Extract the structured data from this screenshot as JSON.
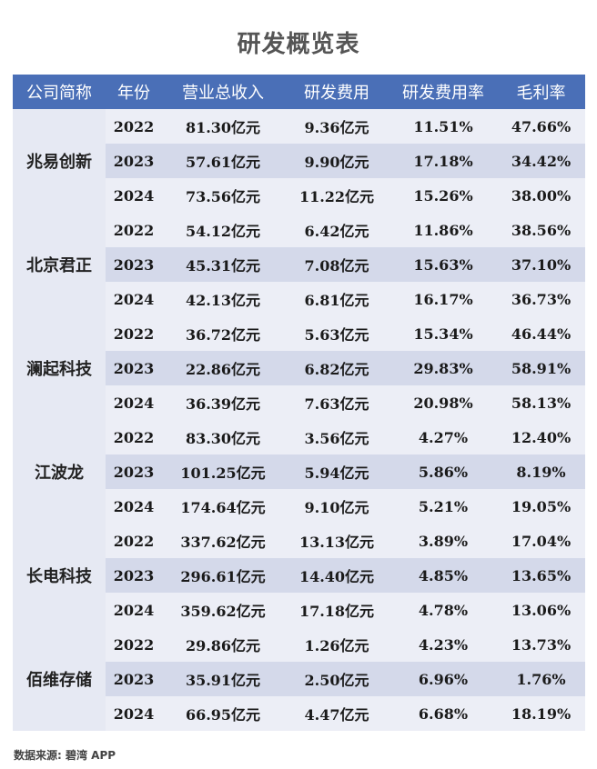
{
  "title": "研发概览表",
  "headers": [
    "公司简称",
    "年份",
    "营业总收入",
    "研发费用",
    "研发费用率",
    "毛利率"
  ],
  "companies": [
    {
      "name": "兆易创新",
      "rows": [
        [
          "2022",
          "81.30亿元",
          "9.36亿元",
          "11.51%",
          "47.66%"
        ],
        [
          "2023",
          "57.61亿元",
          "9.90亿元",
          "17.18%",
          "34.42%"
        ],
        [
          "2024",
          "73.56亿元",
          "11.22亿元",
          "15.26%",
          "38.00%"
        ]
      ]
    },
    {
      "name": "北京君正",
      "rows": [
        [
          "2022",
          "54.12亿元",
          "6.42亿元",
          "11.86%",
          "38.56%"
        ],
        [
          "2023",
          "45.31亿元",
          "7.08亿元",
          "15.63%",
          "37.10%"
        ],
        [
          "2024",
          "42.13亿元",
          "6.81亿元",
          "16.17%",
          "36.73%"
        ]
      ]
    },
    {
      "name": "澜起科技",
      "rows": [
        [
          "2022",
          "36.72亿元",
          "5.63亿元",
          "15.34%",
          "46.44%"
        ],
        [
          "2023",
          "22.86亿元",
          "6.82亿元",
          "29.83%",
          "58.91%"
        ],
        [
          "2024",
          "36.39亿元",
          "7.63亿元",
          "20.98%",
          "58.13%"
        ]
      ]
    },
    {
      "name": "江波龙",
      "rows": [
        [
          "2022",
          "83.30亿元",
          "3.56亿元",
          "4.27%",
          "12.40%"
        ],
        [
          "2023",
          "101.25亿元",
          "5.94亿元",
          "5.86%",
          "8.19%"
        ],
        [
          "2024",
          "174.64亿元",
          "9.10亿元",
          "5.21%",
          "19.05%"
        ]
      ]
    },
    {
      "name": "长电科技",
      "rows": [
        [
          "2022",
          "337.62亿元",
          "13.13亿元",
          "3.89%",
          "17.04%"
        ],
        [
          "2023",
          "296.61亿元",
          "14.40亿元",
          "4.85%",
          "13.65%"
        ],
        [
          "2024",
          "359.62亿元",
          "17.18亿元",
          "4.78%",
          "13.06%"
        ]
      ]
    },
    {
      "name": "佰维存储",
      "rows": [
        [
          "2022",
          "29.86亿元",
          "1.26亿元",
          "4.23%",
          "13.73%"
        ],
        [
          "2023",
          "35.91亿元",
          "2.50亿元",
          "6.96%",
          "1.76%"
        ],
        [
          "2024",
          "66.95亿元",
          "4.47亿元",
          "6.68%",
          "18.19%"
        ]
      ]
    }
  ],
  "source": "数据来源: 碧湾 APP"
}
